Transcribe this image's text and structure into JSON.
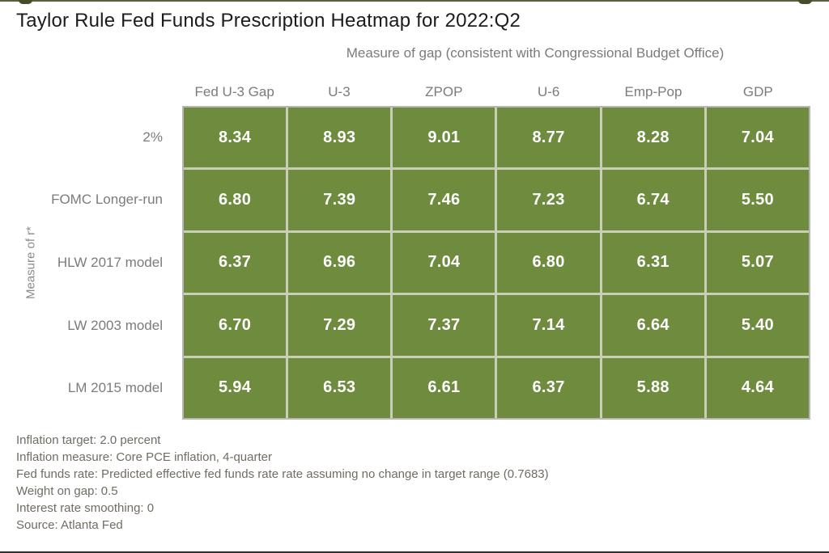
{
  "page": {
    "title": "Taylor Rule Fed Funds Prescription Heatmap for 2022:Q2"
  },
  "chart_data": {
    "type": "heatmap",
    "title": "Taylor Rule Fed Funds Prescription Heatmap for 2022:Q2",
    "xlabel": "Measure of gap (consistent with Congressional Budget Office)",
    "ylabel": "Measure of r*",
    "columns": [
      "Fed U-3 Gap",
      "U-3",
      "ZPOP",
      "U-6",
      "Emp-Pop",
      "GDP"
    ],
    "rows": [
      "2%",
      "FOMC Longer-run",
      "HLW 2017 model",
      "LW 2003 model",
      "LM 2015 model"
    ],
    "values": [
      [
        8.34,
        8.93,
        9.01,
        8.77,
        8.28,
        7.04
      ],
      [
        6.8,
        7.39,
        7.46,
        7.23,
        6.74,
        5.5
      ],
      [
        6.37,
        6.96,
        7.04,
        6.8,
        6.31,
        5.07
      ],
      [
        6.7,
        7.29,
        7.37,
        7.14,
        6.64,
        5.4
      ],
      [
        5.94,
        6.53,
        6.61,
        6.37,
        5.88,
        4.64
      ]
    ],
    "display": [
      [
        "8.34",
        "8.93",
        "9.01",
        "8.77",
        "8.28",
        "7.04"
      ],
      [
        "6.80",
        "7.39",
        "7.46",
        "7.23",
        "6.74",
        "5.50"
      ],
      [
        "6.37",
        "6.96",
        "7.04",
        "6.80",
        "6.31",
        "5.07"
      ],
      [
        "6.70",
        "7.29",
        "7.37",
        "7.14",
        "6.64",
        "5.40"
      ],
      [
        "5.94",
        "6.53",
        "6.61",
        "6.37",
        "5.88",
        "4.64"
      ]
    ],
    "colors": {
      "cell_fill": "#6E8B3E",
      "cell_text": "#FFFFFF",
      "grid_line": "#C9CFB6",
      "outer_border": "#B7B7B7",
      "label_text": "#7B7B7B",
      "title_text": "#1C1C1C",
      "footnote_text": "#716C63"
    },
    "legend": "none",
    "grid": "on"
  },
  "footnotes": {
    "lines": [
      "Inflation target: 2.0 percent",
      "Inflation measure: Core PCE inflation, 4-quarter",
      "Fed funds rate: Predicted effective fed funds rate rate assuming no change in target range (0.7683)",
      "Weight on gap: 0.5",
      "Interest rate smoothing: 0",
      "Source: Atlanta Fed"
    ]
  }
}
